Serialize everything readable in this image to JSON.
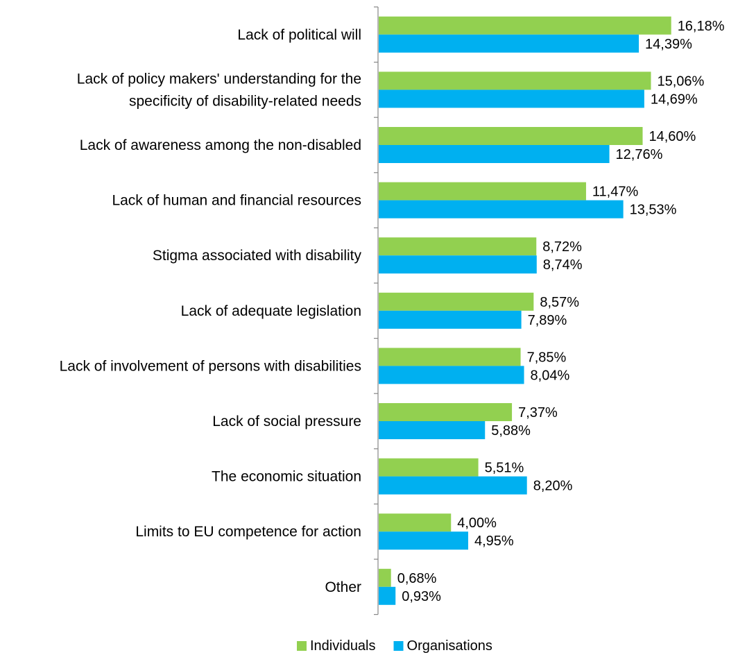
{
  "chart_data": {
    "type": "bar",
    "orientation": "horizontal",
    "categories": [
      [
        "Lack of political will"
      ],
      [
        "Lack of policy makers' understanding for the",
        "specificity of disability-related needs"
      ],
      [
        "Lack of awareness among the non-disabled"
      ],
      [
        "Lack of human and financial resources"
      ],
      [
        "Stigma associated with disability"
      ],
      [
        "Lack of adequate legislation"
      ],
      [
        "Lack of involvement of persons with disabilities"
      ],
      [
        "Lack of social pressure"
      ],
      [
        "The economic situation"
      ],
      [
        "Limits to EU competence for action"
      ],
      [
        "Other"
      ]
    ],
    "series": [
      {
        "name": "Individuals",
        "color": "#92d050",
        "values": [
          16.18,
          15.06,
          14.6,
          11.47,
          8.72,
          8.57,
          7.85,
          7.37,
          5.51,
          4.0,
          0.68
        ],
        "labels": [
          "16,18%",
          "15,06%",
          "14,60%",
          "11,47%",
          "8,72%",
          "8,57%",
          "7,85%",
          "7,37%",
          "5,51%",
          "4,00%",
          "0,68%"
        ]
      },
      {
        "name": "Organisations",
        "color": "#00b0f0",
        "values": [
          14.39,
          14.69,
          12.76,
          13.53,
          8.74,
          7.89,
          8.04,
          5.88,
          8.2,
          4.95,
          0.93
        ],
        "labels": [
          "14,39%",
          "14,69%",
          "12,76%",
          "13,53%",
          "8,74%",
          "7,89%",
          "8,04%",
          "5,88%",
          "8,20%",
          "4,95%",
          "0,93%"
        ]
      }
    ],
    "xlim": [
      0,
      18
    ],
    "grid": false,
    "legend_position": "bottom"
  }
}
